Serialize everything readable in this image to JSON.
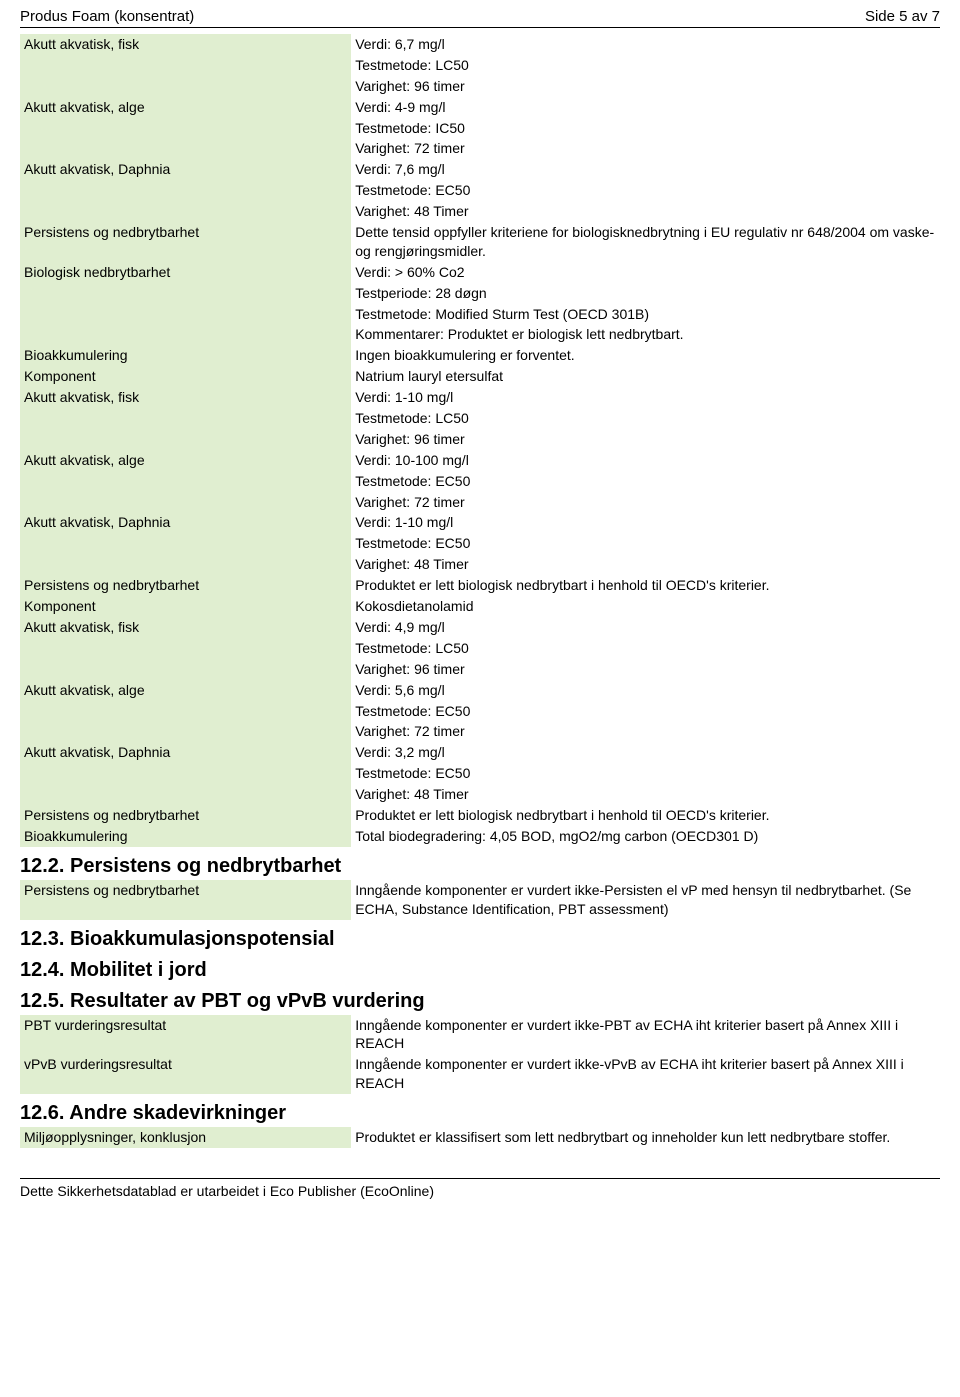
{
  "header": {
    "title": "Produs Foam (konsentrat)",
    "page": "Side 5 av 7"
  },
  "rows1": [
    {
      "label": "Akutt akvatisk, fisk",
      "value": "Verdi: 6,7 mg/l\nTestmetode: LC50\nVarighet: 96 timer"
    },
    {
      "label": "Akutt akvatisk, alge",
      "value": "Verdi: 4-9 mg/l\nTestmetode: IC50\nVarighet: 72 timer"
    },
    {
      "label": "Akutt akvatisk, Daphnia",
      "value": "Verdi: 7,6 mg/l\nTestmetode: EC50\nVarighet: 48 Timer"
    },
    {
      "label": "Persistens og nedbrytbarhet",
      "value": "Dette tensid oppfyller kriteriene for biologisknedbrytning i EU regulativ nr 648/2004 om vaske- og rengjøringsmidler."
    },
    {
      "label": "Biologisk nedbrytbarhet",
      "value": "Verdi: > 60% Co2\nTestperiode: 28 døgn\nTestmetode: Modified Sturm Test (OECD 301B)\nKommentarer: Produktet er biologisk lett nedbrytbart."
    },
    {
      "label": "Bioakkumulering",
      "value": "Ingen bioakkumulering er forventet."
    },
    {
      "label": "Komponent",
      "value": "Natrium lauryl etersulfat"
    },
    {
      "label": "Akutt akvatisk, fisk",
      "value": "Verdi: 1-10 mg/l\nTestmetode: LC50\nVarighet: 96 timer"
    },
    {
      "label": "Akutt akvatisk, alge",
      "value": "Verdi: 10-100 mg/l\nTestmetode: EC50\nVarighet: 72 timer"
    },
    {
      "label": "Akutt akvatisk, Daphnia",
      "value": "Verdi: 1-10 mg/l\nTestmetode: EC50\nVarighet: 48 Timer"
    },
    {
      "label": "Persistens og nedbrytbarhet",
      "value": "Produktet er lett biologisk nedbrytbart i henhold til OECD's kriterier."
    },
    {
      "label": "Komponent",
      "value": "Kokosdietanolamid"
    },
    {
      "label": "Akutt akvatisk, fisk",
      "value": "Verdi: 4,9 mg/l\nTestmetode: LC50\nVarighet: 96 timer"
    },
    {
      "label": "Akutt akvatisk, alge",
      "value": "Verdi: 5,6 mg/l\nTestmetode: EC50\nVarighet: 72 timer"
    },
    {
      "label": "Akutt akvatisk, Daphnia",
      "value": "Verdi: 3,2 mg/l\nTestmetode: EC50\nVarighet: 48 Timer"
    },
    {
      "label": "Persistens og nedbrytbarhet",
      "value": "Produktet er lett biologisk nedbrytbart i henhold til OECD's kriterier."
    },
    {
      "label": "Bioakkumulering",
      "value": "Total biodegradering: 4,05 BOD, mgO2/mg carbon (OECD301 D)"
    }
  ],
  "s122_heading": "12.2. Persistens og nedbrytbarhet",
  "rows2": [
    {
      "label": "Persistens og nedbrytbarhet",
      "value": "Inngående komponenter er vurdert ikke-Persisten el vP med hensyn til nedbrytbarhet. (Se ECHA, Substance Identification, PBT assessment)"
    }
  ],
  "s123_heading": "12.3. Bioakkumulasjonspotensial",
  "s124_heading": "12.4. Mobilitet i jord",
  "s125_heading": "12.5. Resultater av PBT og vPvB vurdering",
  "rows3": [
    {
      "label": "PBT vurderingsresultat",
      "value": "Inngående komponenter er vurdert ikke-PBT av ECHA iht kriterier basert på Annex XIII i REACH"
    },
    {
      "label": "vPvB vurderingsresultat",
      "value": "Inngående komponenter er vurdert ikke-vPvB av ECHA iht kriterier basert på Annex XIII i REACH"
    }
  ],
  "s126_heading": "12.6. Andre skadevirkninger",
  "rows4": [
    {
      "label": "Miljøopplysninger, konklusjon",
      "value": "Produktet er klassifisert som lett nedbrytbart og inneholder kun lett nedbrytbare stoffer."
    }
  ],
  "footer": "Dette Sikkerhetsdatablad er utarbeidet i Eco Publisher (EcoOnline)"
}
